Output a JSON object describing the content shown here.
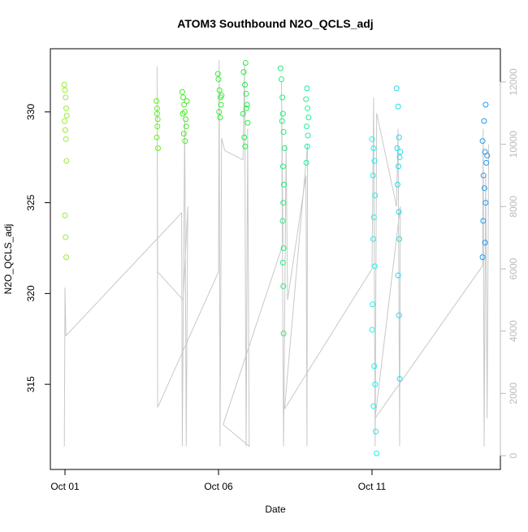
{
  "chart_data": {
    "type": "scatter",
    "title": "ATOM3 Southbound N2O_QCLS_adj",
    "x_label": "Date",
    "y_label": "N2O_QCLS_adj",
    "xlim": [
      0.524,
      15.18
    ],
    "ylim": [
      310.31,
      333.48
    ],
    "y2lim": [
      -443,
      13069
    ],
    "xticks": [
      {
        "value": 1,
        "label": "Oct 01"
      },
      {
        "value": 6,
        "label": "Oct 06"
      },
      {
        "value": 11,
        "label": "Oct 11"
      }
    ],
    "yticks": [
      315,
      320,
      325,
      330
    ],
    "y2ticks": [
      0,
      2000,
      4000,
      6000,
      8000,
      10000,
      12000
    ],
    "y2_color": "#bbbbbb",
    "series": [
      {
        "type": "line",
        "axis": "y2",
        "color": "#c8c8c8",
        "x": [
          0.98,
          1.0,
          1.03,
          4.8,
          4.82,
          4.9,
          4.95,
          5.0,
          4.85,
          4.02,
          4.0,
          4.02,
          6.0,
          6.02,
          6.05,
          6.1,
          6.2,
          6.8,
          6.85,
          6.9,
          6.95,
          7.0,
          6.15,
          8.1,
          8.05,
          8.12,
          8.2,
          8.25,
          8.85,
          8.88,
          8.9,
          8.15,
          11.0,
          11.05,
          11.1,
          11.15,
          11.8,
          11.85,
          11.9,
          11.92,
          11.1,
          14.6,
          14.62,
          14.65,
          14.7,
          14.75,
          14.8
        ],
        "values": [
          300,
          5400,
          3850,
          7800,
          300,
          10800,
          300,
          8000,
          5000,
          5900,
          12500,
          1550,
          5900,
          12700,
          300,
          10200,
          9800,
          9500,
          12600,
          300,
          10500,
          300,
          1000,
          6800,
          12000,
          300,
          10000,
          5000,
          9000,
          300,
          10000,
          1500,
          6000,
          11500,
          300,
          11000,
          8000,
          10500,
          300,
          8000,
          1200,
          6100,
          10500,
          300,
          9000,
          1200,
          10000
        ]
      },
      {
        "color": "#99ee33",
        "x": [
          0.98,
          1.0,
          1.02,
          1.04,
          0.99,
          1.01,
          1.03,
          1.05,
          1.0,
          1.02,
          1.04,
          1.06
        ],
        "values": [
          331.5,
          331.2,
          330.8,
          330.2,
          329.5,
          329.0,
          328.5,
          327.3,
          324.3,
          323.1,
          322.0,
          329.8
        ]
      },
      {
        "color": "#66ee22",
        "x": [
          3.98,
          4.0,
          4.02,
          4.01,
          3.99,
          4.03,
          4.0
        ],
        "values": [
          330.6,
          330.2,
          329.6,
          329.2,
          328.6,
          328.0,
          329.9
        ]
      },
      {
        "color": "#44ee22",
        "x": [
          4.82,
          4.85,
          4.88,
          4.9,
          4.93,
          4.95,
          4.87,
          4.91,
          4.97,
          4.84
        ],
        "values": [
          331.1,
          330.8,
          330.4,
          330.0,
          329.6,
          329.2,
          328.8,
          328.4,
          330.6,
          329.9
        ]
      },
      {
        "color": "#33ee33",
        "x": [
          5.98,
          6.0,
          6.03,
          6.06,
          6.08,
          6.02,
          6.05,
          6.1
        ],
        "values": [
          332.1,
          331.8,
          331.2,
          330.8,
          330.4,
          330.0,
          329.7,
          330.9
        ]
      },
      {
        "color": "#22ee44",
        "x": [
          6.88,
          6.82,
          6.86,
          6.9,
          6.93,
          6.8,
          6.95,
          6.84,
          6.87,
          6.91
        ],
        "values": [
          332.7,
          332.2,
          331.5,
          331.0,
          330.4,
          329.9,
          329.4,
          328.6,
          328.1,
          330.2
        ]
      },
      {
        "color": "#22ee77",
        "x": [
          8.02,
          8.05,
          8.08,
          8.1,
          8.12,
          8.15,
          8.1,
          8.13,
          8.11,
          8.09,
          8.12,
          8.1,
          8.11,
          8.12,
          8.07
        ],
        "values": [
          332.4,
          331.8,
          330.8,
          329.9,
          328.9,
          328.0,
          327.0,
          326.0,
          325.0,
          324.0,
          322.5,
          321.7,
          320.4,
          317.8,
          329.5
        ]
      },
      {
        "color": "#22ee99",
        "x": [
          8.88,
          8.85,
          8.9,
          8.93,
          8.87,
          8.91,
          8.89,
          8.86
        ],
        "values": [
          331.3,
          330.7,
          330.2,
          329.7,
          329.2,
          328.7,
          328.1,
          327.2
        ]
      },
      {
        "color": "#22eeee",
        "x": [
          11.0,
          11.05,
          11.08,
          11.03,
          11.1,
          11.06,
          11.04,
          11.09,
          11.02,
          11.0,
          11.07,
          11.1,
          11.05,
          11.12,
          11.15
        ],
        "values": [
          328.5,
          328.0,
          327.3,
          326.5,
          325.4,
          324.2,
          323.0,
          321.5,
          319.4,
          318.0,
          316.0,
          315.0,
          313.8,
          312.4,
          311.2
        ]
      },
      {
        "color": "#22ddee",
        "x": [
          11.8,
          11.85,
          11.88,
          11.82,
          11.9,
          11.86,
          11.83,
          11.87,
          11.89,
          11.85,
          11.88,
          11.9,
          11.92
        ],
        "values": [
          331.3,
          330.3,
          328.6,
          328.0,
          327.5,
          327.0,
          326.0,
          324.5,
          323.0,
          321.0,
          318.8,
          315.3,
          327.8
        ]
      },
      {
        "color": "#2299ee",
        "x": [
          14.7,
          14.65,
          14.6,
          14.68,
          14.72,
          14.63,
          14.66,
          14.7,
          14.62,
          14.68,
          14.6,
          14.75
        ],
        "values": [
          330.4,
          329.5,
          328.4,
          327.8,
          327.2,
          326.5,
          325.8,
          325.0,
          324.0,
          322.8,
          322.0,
          327.6
        ]
      }
    ]
  }
}
